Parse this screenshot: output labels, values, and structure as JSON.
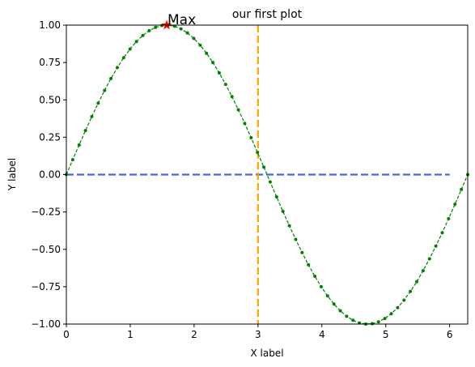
{
  "chart_data": {
    "type": "line",
    "title": "our first plot",
    "xlabel": "X label",
    "ylabel": "Y label",
    "xlim": [
      0,
      6.283
    ],
    "ylim": [
      -1.0,
      1.0
    ],
    "xticks": [
      0,
      1,
      2,
      3,
      4,
      5,
      6
    ],
    "yticks": [
      -1.0,
      -0.75,
      -0.5,
      -0.25,
      0.0,
      0.25,
      0.5,
      0.75,
      1.0
    ],
    "xtick_labels": [
      "0",
      "1",
      "2",
      "3",
      "4",
      "5",
      "6"
    ],
    "ytick_labels": [
      "−1.00",
      "−0.75",
      "−0.50",
      "−0.25",
      "0.00",
      "0.25",
      "0.50",
      "0.75",
      "1.00"
    ],
    "grid": false,
    "series": [
      {
        "x_start": 0,
        "x_end": 6.283,
        "points": 64,
        "function": "sin(x)",
        "color": "#008000",
        "linestyle": "dashed",
        "marker": "dot"
      }
    ],
    "hline": {
      "y": 0,
      "x_range": [
        0,
        6
      ],
      "color": "#4169e1",
      "linestyle": "dashed"
    },
    "vline": {
      "x": 3,
      "color": "#ffa500",
      "linestyle": "dashed"
    },
    "annotation": {
      "text": "Max",
      "x": 1.571,
      "y": 1.0,
      "marker_color": "#ff0000",
      "marker": "star"
    }
  }
}
